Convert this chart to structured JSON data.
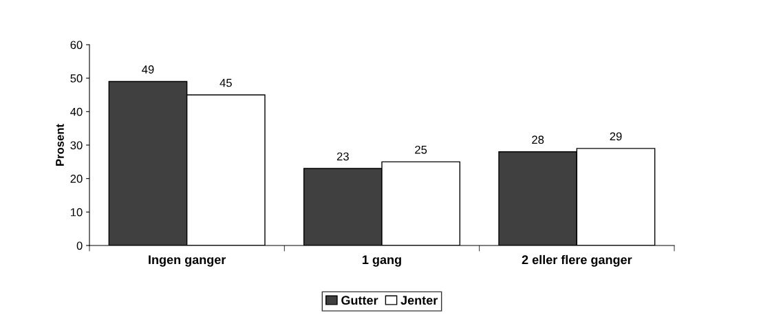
{
  "chart_data": {
    "type": "bar",
    "ylabel": "Prosent",
    "categories": [
      "Ingen ganger",
      "1 gang",
      "2 eller flere ganger"
    ],
    "series": [
      {
        "name": "Gutter",
        "color": "#404040",
        "values": [
          49,
          23,
          28
        ]
      },
      {
        "name": "Jenter",
        "color": "#ffffff",
        "values": [
          45,
          25,
          29
        ]
      }
    ],
    "ylim": [
      0,
      60
    ],
    "yticks": [
      0,
      10,
      20,
      30,
      40,
      50,
      60
    ],
    "grid": false,
    "legend": "bottom",
    "data_labels": true
  }
}
